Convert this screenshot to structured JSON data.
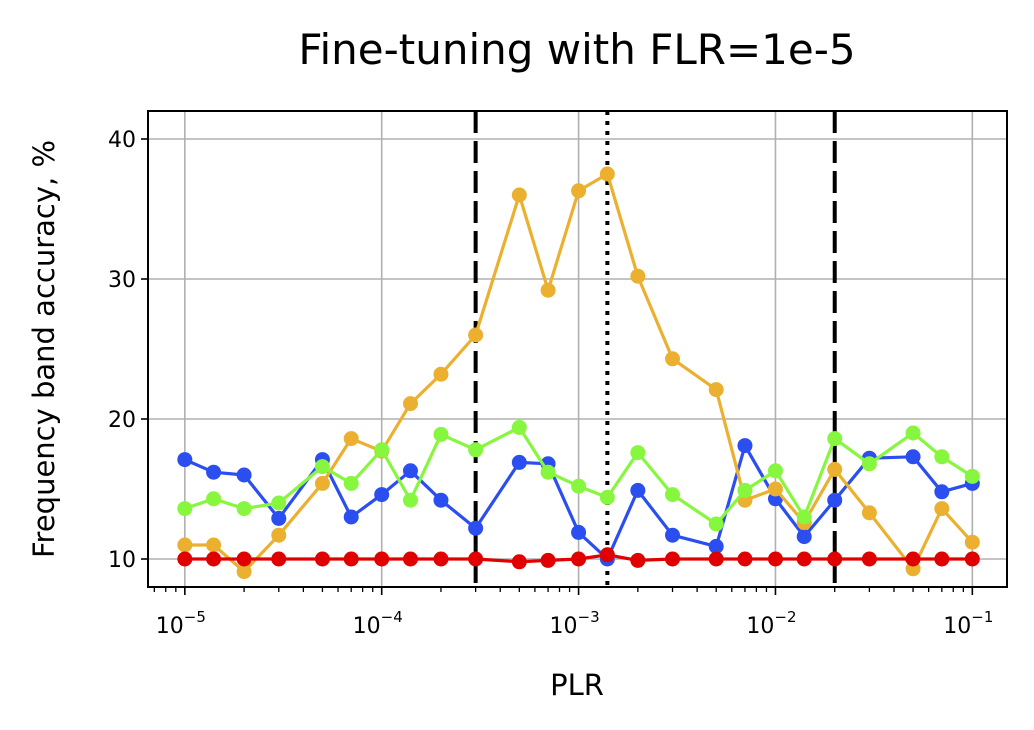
{
  "chart_data": {
    "type": "line",
    "title": "Fine-tuning with FLR=1e-5",
    "xlabel": "PLR",
    "ylabel": "Frequency band accuracy, %",
    "xscale": "log",
    "xlim": [
      6.5e-06,
      0.15
    ],
    "ylim": [
      8,
      42
    ],
    "grid": true,
    "x": [
      1e-05,
      1.4e-05,
      2e-05,
      3e-05,
      5e-05,
      7e-05,
      0.0001,
      0.00014,
      0.0002,
      0.0003,
      0.0005,
      0.0007,
      0.001,
      0.0014,
      0.002,
      0.003,
      0.005,
      0.007,
      0.01,
      0.014,
      0.02,
      0.03,
      0.05,
      0.07,
      0.1
    ],
    "yticks": [
      10,
      20,
      30,
      40
    ],
    "xticks": [
      {
        "value": 1e-05,
        "base": "10",
        "exp": "−5"
      },
      {
        "value": 0.0001,
        "base": "10",
        "exp": "−4"
      },
      {
        "value": 0.001,
        "base": "10",
        "exp": "−3"
      },
      {
        "value": 0.01,
        "base": "10",
        "exp": "−2"
      },
      {
        "value": 0.1,
        "base": "10",
        "exp": "−1"
      }
    ],
    "series": [
      {
        "color": "#2b4ef0",
        "values": [
          17.1,
          16.2,
          16.0,
          12.9,
          17.1,
          13.0,
          14.6,
          16.3,
          14.2,
          12.2,
          16.9,
          16.8,
          11.9,
          10.0,
          14.9,
          11.7,
          10.9,
          18.1,
          14.3,
          11.6,
          14.2,
          17.2,
          17.3,
          14.8,
          15.4
        ]
      },
      {
        "color": "#ecb030",
        "values": [
          11.0,
          11.0,
          9.1,
          11.7,
          15.4,
          18.6,
          17.7,
          21.1,
          23.2,
          26.0,
          36.0,
          29.2,
          36.3,
          37.5,
          30.2,
          24.3,
          22.1,
          14.2,
          15.0,
          12.6,
          16.4,
          13.3,
          9.3,
          13.6,
          11.2
        ]
      },
      {
        "color": "#86f73e",
        "values": [
          13.6,
          14.3,
          13.6,
          14.0,
          16.6,
          15.4,
          17.8,
          14.2,
          18.9,
          17.8,
          19.4,
          16.2,
          15.2,
          14.4,
          17.6,
          14.6,
          12.5,
          14.9,
          16.3,
          13.0,
          18.6,
          16.8,
          19.0,
          17.3,
          15.9
        ]
      },
      {
        "color": "#e00000",
        "values": [
          10.0,
          10.0,
          10.0,
          10.0,
          10.0,
          10.0,
          10.0,
          10.0,
          10.0,
          10.0,
          9.8,
          9.9,
          10.0,
          10.3,
          9.9,
          10.0,
          10.0,
          10.0,
          10.0,
          10.0,
          10.0,
          10.0,
          10.0,
          10.0,
          10.0
        ]
      }
    ],
    "vlines": [
      {
        "x": 0.0003,
        "style": "dashed",
        "color": "#000000"
      },
      {
        "x": 0.0014,
        "style": "dotted",
        "color": "#000000"
      },
      {
        "x": 0.02,
        "style": "dashed",
        "color": "#000000"
      }
    ]
  }
}
